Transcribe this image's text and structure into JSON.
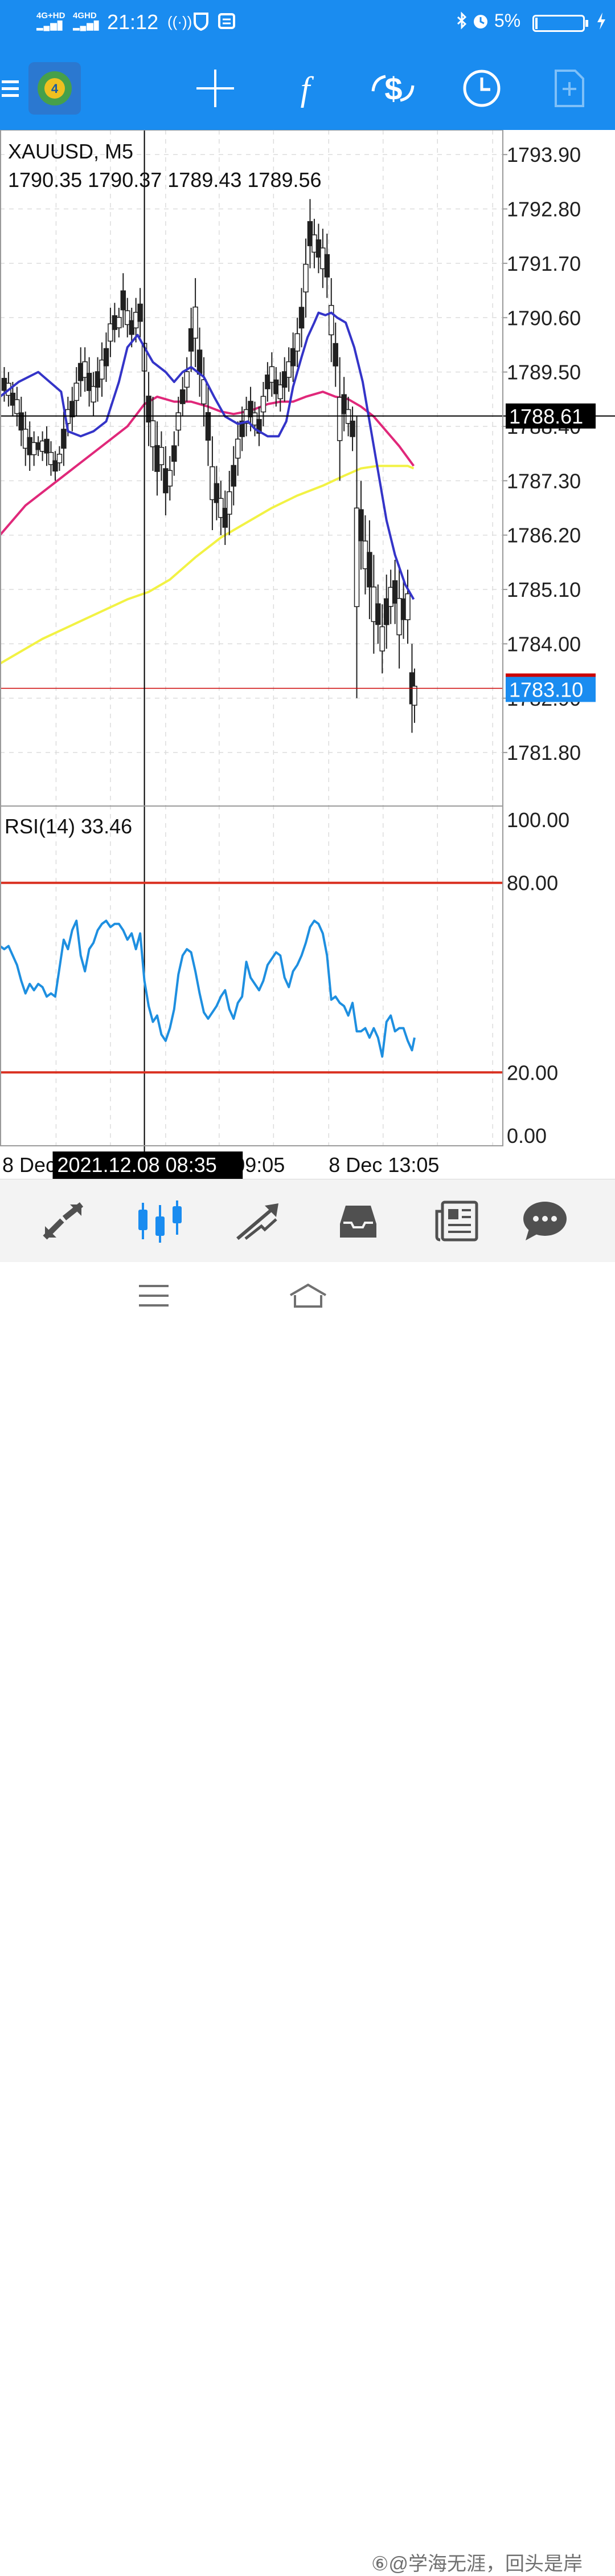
{
  "status_bar": {
    "signal_1": "4G+HD",
    "signal_2": "4GHD",
    "time": "21:12",
    "battery": "5%",
    "battery_level": 0.05
  },
  "toolbar": {
    "icons": [
      "app-logo-icon",
      "crosshair-icon",
      "indicator-f-icon",
      "trade-dollar-icon",
      "timeframe-clock-icon",
      "new-document-icon"
    ]
  },
  "colors": {
    "accent": "#1a8cf0",
    "ma_fast": "#3434c8",
    "ma_mid": "#e0287a",
    "ma_slow": "#f2f244",
    "rsi": "#1e8fe0",
    "rsi_levels": "#d93020",
    "bid_line": "#cc0000"
  },
  "chart": {
    "symbol": "XAUUSD, M5",
    "ohlc": "1790.35 1790.37 1789.43 1789.56",
    "price_ticks": [
      "1793.90",
      "1792.80",
      "1791.70",
      "1790.60",
      "1789.50",
      "1788.40",
      "1787.30",
      "1786.20",
      "1785.10",
      "1784.00",
      "1782.90",
      "1781.80"
    ],
    "crosshair_price": "1788.61",
    "bid_price": "1783.10",
    "crosshair_time": "2021.12.08 08:35",
    "time_labels": [
      "8 Dec",
      "09:05",
      "8 Dec 13:05"
    ]
  },
  "rsi": {
    "label": "RSI(14) 33.46",
    "ticks": [
      "100.00",
      "80.00",
      "20.00",
      "0.00"
    ]
  },
  "chart_data": {
    "type": "line",
    "symbol": "XAUUSD",
    "timeframe": "M5",
    "ylim": [
      1780.9,
      1794.4
    ],
    "last_ohlc": [
      1790.35,
      1790.37,
      1789.43,
      1789.56
    ],
    "crosshair_value": 1788.61,
    "bid": 1783.1,
    "grid": true,
    "price_series": [
      {
        "id": "ma_fast",
        "color": "#3434c8",
        "x": [
          0,
          22,
          45,
          72,
          80,
          95,
          110,
          125,
          140,
          150,
          162,
          170,
          180,
          195,
          205,
          215,
          225,
          240,
          252,
          265,
          280,
          292,
          300,
          315,
          328,
          337,
          345,
          355,
          362,
          370,
          375,
          383,
          390,
          397,
          407,
          417,
          427,
          440,
          455,
          465,
          477,
          487
        ],
        "y": [
          1789.0,
          1789.3,
          1789.5,
          1789.1,
          1788.3,
          1788.2,
          1788.3,
          1788.5,
          1789.3,
          1790.0,
          1790.25,
          1790.0,
          1789.7,
          1789.5,
          1789.3,
          1789.5,
          1789.6,
          1789.4,
          1789.0,
          1788.6,
          1788.45,
          1788.5,
          1788.35,
          1788.2,
          1788.2,
          1788.5,
          1789.2,
          1789.8,
          1790.2,
          1790.5,
          1790.7,
          1790.65,
          1790.7,
          1790.6,
          1790.5,
          1790.0,
          1789.3,
          1788.0,
          1786.5,
          1785.8,
          1785.2,
          1784.9
        ]
      },
      {
        "id": "ma_mid",
        "color": "#e0287a",
        "x": [
          0,
          30,
          60,
          90,
          120,
          150,
          170,
          185,
          205,
          225,
          245,
          260,
          275,
          290,
          300,
          315,
          330,
          345,
          360,
          380,
          395,
          410,
          425,
          440,
          455,
          470,
          487
        ],
        "y": [
          1786.2,
          1786.8,
          1787.2,
          1787.6,
          1788.0,
          1788.4,
          1788.85,
          1789.0,
          1788.9,
          1788.9,
          1788.8,
          1788.7,
          1788.65,
          1788.7,
          1788.75,
          1788.85,
          1788.9,
          1788.9,
          1789.0,
          1789.1,
          1789.0,
          1788.95,
          1788.8,
          1788.6,
          1788.3,
          1788.0,
          1787.6
        ]
      },
      {
        "id": "ma_slow",
        "color": "#f2f244",
        "x": [
          0,
          50,
          100,
          150,
          175,
          200,
          230,
          260,
          290,
          320,
          350,
          380,
          405,
          425,
          445,
          465,
          480,
          487
        ],
        "y": [
          1783.6,
          1784.1,
          1784.5,
          1784.9,
          1785.05,
          1785.3,
          1785.75,
          1786.15,
          1786.45,
          1786.75,
          1787.0,
          1787.2,
          1787.4,
          1787.55,
          1787.6,
          1787.6,
          1787.6,
          1787.55
        ]
      }
    ],
    "candles_hl": [
      {
        "x": 5,
        "h": 1789.6,
        "l": 1788.9
      },
      {
        "x": 10,
        "h": 1789.5,
        "l": 1788.8
      },
      {
        "x": 15,
        "h": 1789.3,
        "l": 1788.6
      },
      {
        "x": 20,
        "h": 1789.2,
        "l": 1788.4
      },
      {
        "x": 25,
        "h": 1789.0,
        "l": 1788.0
      },
      {
        "x": 30,
        "h": 1788.7,
        "l": 1787.6
      },
      {
        "x": 35,
        "h": 1788.5,
        "l": 1787.5
      },
      {
        "x": 40,
        "h": 1788.3,
        "l": 1787.6
      },
      {
        "x": 45,
        "h": 1788.2,
        "l": 1787.8
      },
      {
        "x": 50,
        "h": 1788.3,
        "l": 1787.7
      },
      {
        "x": 55,
        "h": 1788.4,
        "l": 1787.6
      },
      {
        "x": 60,
        "h": 1788.1,
        "l": 1787.4
      },
      {
        "x": 65,
        "h": 1787.9,
        "l": 1787.3
      },
      {
        "x": 70,
        "h": 1788.0,
        "l": 1787.5
      },
      {
        "x": 75,
        "h": 1788.7,
        "l": 1787.6
      },
      {
        "x": 80,
        "h": 1789.0,
        "l": 1788.2
      },
      {
        "x": 85,
        "h": 1789.2,
        "l": 1788.3
      },
      {
        "x": 90,
        "h": 1789.6,
        "l": 1788.6
      },
      {
        "x": 95,
        "h": 1790.0,
        "l": 1789.0
      },
      {
        "x": 100,
        "h": 1790.0,
        "l": 1789.1
      },
      {
        "x": 105,
        "h": 1789.8,
        "l": 1788.8
      },
      {
        "x": 110,
        "h": 1789.5,
        "l": 1788.6
      },
      {
        "x": 115,
        "h": 1789.8,
        "l": 1788.9
      },
      {
        "x": 120,
        "h": 1790.1,
        "l": 1789.0
      },
      {
        "x": 125,
        "h": 1790.3,
        "l": 1789.3
      },
      {
        "x": 130,
        "h": 1790.8,
        "l": 1789.8
      },
      {
        "x": 135,
        "h": 1790.9,
        "l": 1790.1
      },
      {
        "x": 140,
        "h": 1790.8,
        "l": 1790.2
      },
      {
        "x": 145,
        "h": 1791.5,
        "l": 1790.4
      },
      {
        "x": 150,
        "h": 1791.0,
        "l": 1790.2
      },
      {
        "x": 155,
        "h": 1790.8,
        "l": 1790.0
      },
      {
        "x": 160,
        "h": 1791.0,
        "l": 1790.1
      },
      {
        "x": 165,
        "h": 1791.2,
        "l": 1790.2
      },
      {
        "x": 170,
        "h": 1790.6,
        "l": 1789.0
      },
      {
        "x": 175,
        "h": 1789.5,
        "l": 1788.0
      },
      {
        "x": 180,
        "h": 1789.0,
        "l": 1787.5
      },
      {
        "x": 185,
        "h": 1788.5,
        "l": 1787.0
      },
      {
        "x": 190,
        "h": 1788.3,
        "l": 1787.3
      },
      {
        "x": 195,
        "h": 1788.0,
        "l": 1786.6
      },
      {
        "x": 200,
        "h": 1787.8,
        "l": 1786.9
      },
      {
        "x": 205,
        "h": 1788.3,
        "l": 1787.4
      },
      {
        "x": 210,
        "h": 1789.0,
        "l": 1788.0
      },
      {
        "x": 215,
        "h": 1789.4,
        "l": 1788.6
      },
      {
        "x": 220,
        "h": 1789.8,
        "l": 1788.9
      },
      {
        "x": 225,
        "h": 1790.8,
        "l": 1789.5
      },
      {
        "x": 230,
        "h": 1791.4,
        "l": 1789.6
      },
      {
        "x": 235,
        "h": 1790.4,
        "l": 1789.0
      },
      {
        "x": 240,
        "h": 1789.8,
        "l": 1788.4
      },
      {
        "x": 245,
        "h": 1789.2,
        "l": 1787.6
      },
      {
        "x": 250,
        "h": 1788.2,
        "l": 1786.3
      },
      {
        "x": 255,
        "h": 1787.6,
        "l": 1786.5
      },
      {
        "x": 260,
        "h": 1787.3,
        "l": 1786.2
      },
      {
        "x": 265,
        "h": 1787.1,
        "l": 1786.0
      },
      {
        "x": 270,
        "h": 1787.5,
        "l": 1786.2
      },
      {
        "x": 275,
        "h": 1788.0,
        "l": 1786.8
      },
      {
        "x": 280,
        "h": 1788.5,
        "l": 1787.4
      },
      {
        "x": 285,
        "h": 1788.8,
        "l": 1787.9
      },
      {
        "x": 290,
        "h": 1789.0,
        "l": 1788.2
      },
      {
        "x": 295,
        "h": 1789.2,
        "l": 1788.3
      },
      {
        "x": 300,
        "h": 1788.9,
        "l": 1788.2
      },
      {
        "x": 305,
        "h": 1788.8,
        "l": 1788.0
      },
      {
        "x": 310,
        "h": 1789.3,
        "l": 1788.4
      },
      {
        "x": 315,
        "h": 1789.7,
        "l": 1788.9
      },
      {
        "x": 320,
        "h": 1789.9,
        "l": 1789.0
      },
      {
        "x": 325,
        "h": 1789.6,
        "l": 1788.8
      },
      {
        "x": 330,
        "h": 1789.5,
        "l": 1788.7
      },
      {
        "x": 335,
        "h": 1789.8,
        "l": 1788.9
      },
      {
        "x": 340,
        "h": 1790.0,
        "l": 1789.1
      },
      {
        "x": 345,
        "h": 1790.3,
        "l": 1789.3
      },
      {
        "x": 350,
        "h": 1790.6,
        "l": 1789.6
      },
      {
        "x": 355,
        "h": 1791.2,
        "l": 1790.0
      },
      {
        "x": 360,
        "h": 1792.2,
        "l": 1790.6
      },
      {
        "x": 365,
        "h": 1793.0,
        "l": 1791.6
      },
      {
        "x": 370,
        "h": 1792.6,
        "l": 1791.6
      },
      {
        "x": 375,
        "h": 1792.5,
        "l": 1791.5
      },
      {
        "x": 380,
        "h": 1792.4,
        "l": 1791.2
      },
      {
        "x": 385,
        "h": 1792.3,
        "l": 1791.0
      },
      {
        "x": 390,
        "h": 1791.4,
        "l": 1789.7
      },
      {
        "x": 395,
        "h": 1790.5,
        "l": 1789.2
      },
      {
        "x": 400,
        "h": 1789.8,
        "l": 1787.3
      },
      {
        "x": 405,
        "h": 1789.4,
        "l": 1788.3
      },
      {
        "x": 410,
        "h": 1789.0,
        "l": 1788.2
      },
      {
        "x": 415,
        "h": 1788.8,
        "l": 1787.9
      },
      {
        "x": 420,
        "h": 1788.6,
        "l": 1782.9
      },
      {
        "x": 425,
        "h": 1787.3,
        "l": 1785.5
      },
      {
        "x": 430,
        "h": 1786.6,
        "l": 1785.0
      },
      {
        "x": 435,
        "h": 1786.5,
        "l": 1784.5
      },
      {
        "x": 440,
        "h": 1785.8,
        "l": 1783.8
      },
      {
        "x": 445,
        "h": 1785.2,
        "l": 1784.0
      },
      {
        "x": 450,
        "h": 1784.8,
        "l": 1783.4
      },
      {
        "x": 455,
        "h": 1785.4,
        "l": 1783.9
      },
      {
        "x": 460,
        "h": 1785.5,
        "l": 1784.4
      },
      {
        "x": 465,
        "h": 1785.7,
        "l": 1784.4
      },
      {
        "x": 470,
        "h": 1785.6,
        "l": 1783.5
      },
      {
        "x": 475,
        "h": 1785.3,
        "l": 1784.1
      },
      {
        "x": 480,
        "h": 1785.5,
        "l": 1784.0
      },
      {
        "x": 485,
        "h": 1784.0,
        "l": 1782.2
      },
      {
        "x": 488,
        "h": 1783.5,
        "l": 1782.4
      }
    ],
    "rsi_series": {
      "name": "RSI(14)",
      "ylim": [
        0,
        100
      ],
      "levels": [
        80,
        20
      ],
      "x": [
        0,
        5,
        10,
        15,
        20,
        25,
        30,
        35,
        40,
        45,
        50,
        55,
        60,
        65,
        70,
        75,
        80,
        85,
        90,
        95,
        100,
        105,
        110,
        115,
        120,
        125,
        130,
        135,
        140,
        145,
        150,
        155,
        160,
        165,
        170,
        175,
        180,
        185,
        190,
        195,
        200,
        205,
        210,
        215,
        220,
        225,
        230,
        235,
        240,
        245,
        250,
        255,
        260,
        265,
        270,
        275,
        280,
        285,
        290,
        295,
        300,
        305,
        310,
        315,
        320,
        325,
        330,
        335,
        340,
        345,
        350,
        355,
        360,
        365,
        370,
        375,
        380,
        385,
        390,
        395,
        400,
        405,
        410,
        415,
        420,
        425,
        430,
        435,
        440,
        445,
        450,
        455,
        460,
        465,
        470,
        475,
        480,
        485,
        488
      ],
      "y": [
        60,
        59,
        60,
        57,
        54,
        49,
        45,
        48,
        46,
        48,
        47,
        44,
        45,
        44,
        53,
        62,
        59,
        65,
        68,
        57,
        52,
        59,
        61,
        65,
        67,
        68,
        66,
        67,
        67,
        65,
        62,
        64,
        59,
        64,
        49,
        41,
        36,
        38,
        32,
        30,
        34,
        40,
        51,
        57,
        59,
        58,
        52,
        45,
        39,
        37,
        39,
        41,
        44,
        46,
        40,
        37,
        42,
        44,
        55,
        50,
        48,
        46,
        49,
        54,
        56,
        58,
        57,
        50,
        47,
        52,
        54,
        57,
        61,
        66,
        68,
        67,
        64,
        57,
        43,
        44,
        42,
        41,
        38,
        42,
        33,
        33,
        34,
        31,
        34,
        31,
        25,
        36,
        38,
        33,
        34,
        34,
        30,
        27,
        31
      ]
    }
  },
  "tab_bar": {
    "tabs": [
      "quotes-tab-icon",
      "chart-tab-icon",
      "trade-tab-icon",
      "history-tab-icon",
      "news-tab-icon",
      "messages-tab-icon"
    ],
    "active": 1
  },
  "nav_bar": {
    "watermark": "⑥@学海无涯，回头是岸"
  }
}
